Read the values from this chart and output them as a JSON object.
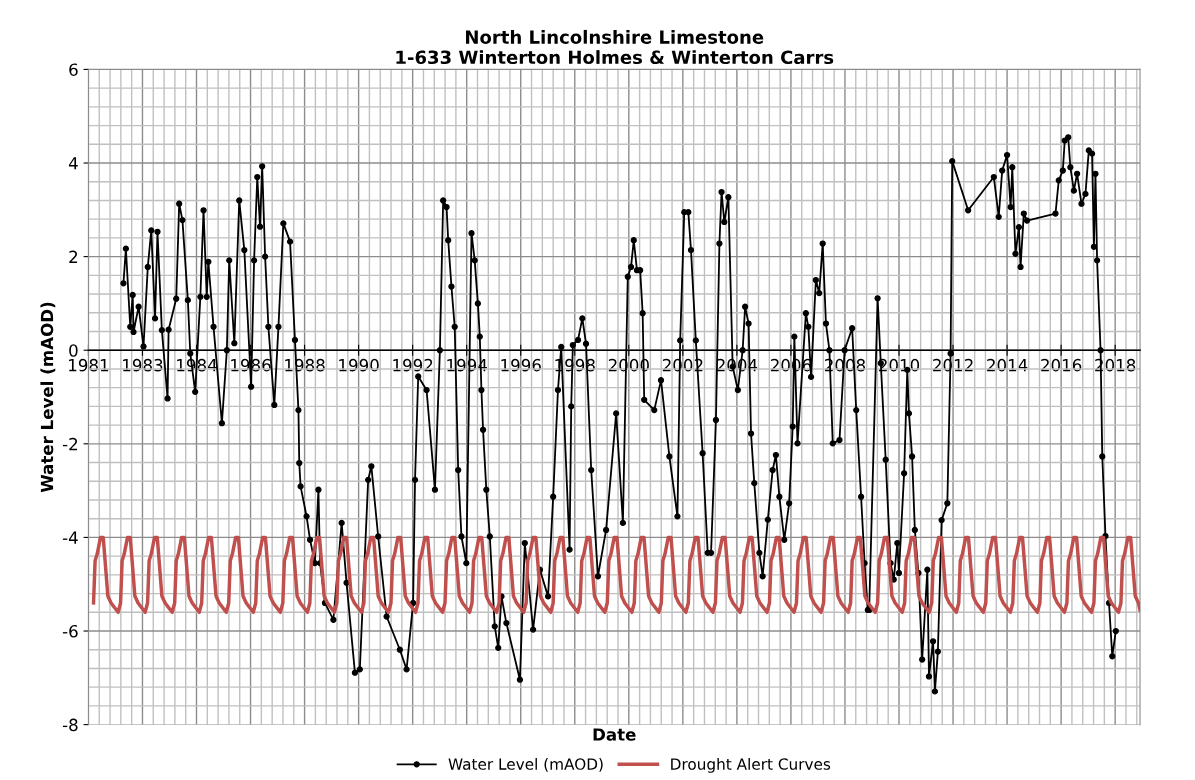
{
  "chart_data": {
    "type": "line",
    "title": "North Lincolnshire Limestone\n1-633 Winterton Holmes & Winterton Carrs",
    "xlabel": "Date",
    "ylabel": "Water Level (mAOD)",
    "xlim": [
      "1981-01-01",
      "2019-11-24"
    ],
    "ylim": [
      -8,
      6
    ],
    "yticks": [
      -8,
      -6,
      -4,
      -2,
      0,
      2,
      4,
      6
    ],
    "xticks": [
      {
        "value": "1981-01-01",
        "label": "1981"
      },
      {
        "value": "1983-01-01",
        "label": "1983"
      },
      {
        "value": "1984-12-31",
        "label": "1984"
      },
      {
        "value": "1986-12-31",
        "label": "1986"
      },
      {
        "value": "1988-12-30",
        "label": "1988"
      },
      {
        "value": "1990-12-30",
        "label": "1990"
      },
      {
        "value": "1992-12-29",
        "label": "1992"
      },
      {
        "value": "1994-12-29",
        "label": "1994"
      },
      {
        "value": "1996-12-28",
        "label": "1996"
      },
      {
        "value": "1998-12-28",
        "label": "1998"
      },
      {
        "value": "2000-12-27",
        "label": "2000"
      },
      {
        "value": "2002-12-27",
        "label": "2002"
      },
      {
        "value": "2004-12-26",
        "label": "2004"
      },
      {
        "value": "2006-12-26",
        "label": "2006"
      },
      {
        "value": "2008-12-25",
        "label": "2008"
      },
      {
        "value": "2010-12-25",
        "label": "2010"
      },
      {
        "value": "2012-12-24",
        "label": "2012"
      },
      {
        "value": "2014-12-24",
        "label": "2014"
      },
      {
        "value": "2016-12-23",
        "label": "2016"
      },
      {
        "value": "2018-12-23",
        "label": "2018"
      }
    ],
    "grid": true,
    "legend": "bottom",
    "series": [
      {
        "name": "Water Level (mAOD)",
        "color": "#000000",
        "marker": "circle",
        "x": [
          "1982-04-19",
          "1982-05-22",
          "1982-07-20",
          "1982-08-22",
          "1982-09-02",
          "1982-11-10",
          "1983-01-15",
          "1983-03-14",
          "1983-04-30",
          "1983-06-20",
          "1983-07-23",
          "1983-09-20",
          "1983-12-06",
          "1983-12-20",
          "1984-04-01",
          "1984-05-11",
          "1984-06-24",
          "1984-09-05",
          "1984-10-08",
          "1984-12-13",
          "1985-02-21",
          "1985-04-05",
          "1985-05-18",
          "1985-06-09",
          "1985-08-18",
          "1985-12-09",
          "1986-02-14",
          "1986-03-18",
          "1986-05-26",
          "1986-07-31",
          "1986-10-08",
          "1987-01-08",
          "1987-02-17",
          "1987-04-01",
          "1987-05-08",
          "1987-06-06",
          "1987-07-16",
          "1987-08-29",
          "1987-11-17",
          "1988-01-12",
          "1988-03-18",
          "1988-06-17",
          "1988-08-22",
          "1988-10-08",
          "1988-10-19",
          "1988-11-06",
          "1989-01-26",
          "1989-03-14",
          "1989-05-18",
          "1989-07-05",
          "1989-07-27",
          "1989-10-01",
          "1990-01-23",
          "1990-05-15",
          "1990-07-20",
          "1990-11-10",
          "1991-01-15",
          "1991-05-08",
          "1991-06-20",
          "1991-09-20",
          "1992-01-12",
          "1992-07-09",
          "1992-10-08",
          "1993-01-04",
          "1993-01-30",
          "1993-03-14",
          "1993-07-05",
          "1993-10-26",
          "1994-01-01",
          "1994-02-14",
          "1994-04-01",
          "1994-04-23",
          "1994-06-06",
          "1994-07-20",
          "1994-09-05",
          "1994-10-19",
          "1994-12-24",
          "1995-03-04",
          "1995-04-16",
          "1995-05-29",
          "1995-06-24",
          "1995-07-16",
          "1995-08-07",
          "1995-09-20",
          "1995-11-06",
          "1996-01-12",
          "1996-02-28",
          "1996-04-12",
          "1996-06-17",
          "1996-12-17",
          "1997-02-21",
          "1997-06-13",
          "1997-09-13",
          "1998-01-01",
          "1998-03-11",
          "1998-05-15",
          "1998-06-28",
          "1998-10-19",
          "1998-11-10",
          "1998-12-02",
          "1999-02-10",
          "1999-04-09",
          "1999-05-29",
          "1999-08-07",
          "1999-11-06",
          "2000-02-24",
          "2000-07-09",
          "2000-10-08",
          "2000-12-13",
          "2001-01-26",
          "2001-03-04",
          "2001-04-16",
          "2001-05-29",
          "2001-07-02",
          "2001-07-23",
          "2001-12-06",
          "2002-03-07",
          "2002-06-28",
          "2002-10-15",
          "2002-11-21",
          "2003-01-15",
          "2003-03-11",
          "2003-04-16",
          "2003-06-20",
          "2003-09-20",
          "2003-11-28",
          "2004-01-12",
          "2004-03-18",
          "2004-05-04",
          "2004-06-02",
          "2004-07-09",
          "2004-09-02",
          "2004-10-30",
          "2005-01-08",
          "2005-03-14",
          "2005-04-16",
          "2005-06-02",
          "2005-07-05",
          "2005-08-18",
          "2005-10-26",
          "2005-12-09",
          "2006-02-17",
          "2006-04-23",
          "2006-06-06",
          "2006-07-23",
          "2006-09-27",
          "2006-12-02",
          "2007-01-19",
          "2007-02-10",
          "2007-03-25",
          "2007-07-16",
          "2007-08-18",
          "2007-09-24",
          "2007-11-28",
          "2008-01-12",
          "2008-02-28",
          "2008-04-12",
          "2008-05-29",
          "2008-07-13",
          "2008-10-12",
          "2008-12-20",
          "2009-04-01",
          "2009-05-26",
          "2009-07-31",
          "2009-09-16",
          "2009-10-30",
          "2009-11-17",
          "2010-03-11",
          "2010-04-23",
          "2010-06-28",
          "2010-09-02",
          "2010-10-15",
          "2010-12-02",
          "2010-12-24",
          "2011-03-04",
          "2011-04-16",
          "2011-05-08",
          "2011-06-20",
          "2011-07-27",
          "2011-09-13",
          "2011-11-03",
          "2012-01-12",
          "2012-02-03",
          "2012-03-29",
          "2012-04-23",
          "2012-06-02",
          "2012-07-23",
          "2012-10-08",
          "2012-11-21",
          "2012-12-13",
          "2013-07-16",
          "2014-06-28",
          "2014-09-02",
          "2014-10-19",
          "2014-12-24",
          "2015-02-10",
          "2015-03-04",
          "2015-04-16",
          "2015-06-02",
          "2015-06-24",
          "2015-08-07",
          "2015-09-20",
          "2016-10-08",
          "2016-11-21",
          "2017-01-15",
          "2017-02-10",
          "2017-03-29",
          "2017-04-27",
          "2017-06-13",
          "2017-07-27",
          "2017-09-24",
          "2017-11-17",
          "2018-01-01",
          "2018-02-14",
          "2018-03-11",
          "2018-04-01",
          "2018-04-23",
          "2018-06-09",
          "2018-07-02",
          "2018-08-14",
          "2018-10-01",
          "2018-11-14",
          "2019-01-01"
        ],
        "values": [
          1.43,
          2.17,
          0.5,
          1.18,
          0.39,
          0.93,
          0.08,
          1.78,
          2.56,
          0.68,
          2.53,
          0.43,
          -1.03,
          0.44,
          1.1,
          3.13,
          2.78,
          1.07,
          -0.07,
          -0.89,
          1.14,
          2.99,
          1.14,
          1.89,
          0.5,
          -1.56,
          0.0,
          1.92,
          0.15,
          3.2,
          2.14,
          -0.78,
          1.92,
          3.7,
          2.64,
          3.93,
          2.0,
          0.5,
          -1.17,
          0.5,
          2.71,
          2.32,
          0.22,
          -1.28,
          -2.41,
          -2.91,
          -3.55,
          -4.05,
          -4.55,
          -2.98,
          -4.55,
          -5.4,
          -5.76,
          -3.69,
          -4.97,
          -6.89,
          -6.82,
          -2.77,
          -2.48,
          -3.98,
          -5.69,
          -6.4,
          -6.82,
          -5.4,
          -2.77,
          -0.56,
          -0.85,
          -2.98,
          0.0,
          3.2,
          3.06,
          2.35,
          1.36,
          0.5,
          -2.56,
          -3.98,
          -4.55,
          2.5,
          1.92,
          1.0,
          0.29,
          -0.85,
          -1.7,
          -2.98,
          -3.98,
          -5.9,
          -6.36,
          -5.26,
          -5.83,
          -7.04,
          -4.12,
          -5.97,
          -4.69,
          -5.26,
          -3.13,
          -0.85,
          0.07,
          -4.26,
          -1.2,
          0.11,
          0.22,
          0.68,
          0.14,
          -2.56,
          -4.83,
          -3.84,
          -1.35,
          -3.69,
          1.57,
          1.78,
          2.35,
          1.71,
          1.71,
          0.79,
          -1.06,
          -1.28,
          -0.64,
          -2.27,
          -3.55,
          0.21,
          2.95,
          2.95,
          2.14,
          0.21,
          -2.2,
          -4.33,
          -4.33,
          -1.49,
          2.28,
          3.38,
          2.74,
          3.27,
          -0.35,
          -0.85,
          0.0,
          0.93,
          0.57,
          -1.78,
          -2.84,
          -4.33,
          -4.83,
          -3.62,
          -2.56,
          -2.24,
          -3.13,
          -4.05,
          -3.27,
          -1.63,
          0.29,
          -1.99,
          0.79,
          0.5,
          -0.57,
          1.5,
          1.22,
          2.28,
          0.57,
          0.0,
          -1.99,
          -1.92,
          0.0,
          0.47,
          -1.28,
          -3.13,
          -4.55,
          -5.55,
          -5.55,
          1.11,
          -0.28,
          -2.34,
          -4.55,
          -4.9,
          -4.12,
          -4.76,
          -2.63,
          -0.42,
          -1.35,
          -2.27,
          -3.84,
          -4.76,
          -6.61,
          -4.69,
          -6.97,
          -6.22,
          -7.29,
          -6.44,
          -3.63,
          -3.27,
          -0.07,
          4.04,
          2.99,
          3.7,
          2.85,
          3.84,
          4.17,
          3.06,
          3.91,
          2.06,
          2.63,
          1.78,
          2.92,
          2.77,
          2.92,
          3.63,
          3.84,
          4.48,
          4.55,
          3.91,
          3.41,
          3.77,
          3.13,
          3.34,
          4.27,
          4.2,
          2.21,
          3.77,
          1.92,
          0.0,
          -2.27,
          -3.97,
          -5.4,
          -6.54,
          -6.0
        ]
      },
      {
        "name": "Drought Alert Curves",
        "color": "#c0504d",
        "marker": "none",
        "x": [
          "1981-03-11",
          "1981-04-01",
          "1981-04-30",
          "1981-06-13",
          "1981-07-20",
          "1981-08-29",
          "1981-09-20",
          "1981-11-03",
          "1982-02-06",
          "1982-03-11",
          "1982-04-01",
          "1982-04-30",
          "1982-06-13",
          "1982-07-20",
          "1982-08-29",
          "1982-09-20",
          "1982-11-03",
          "1983-02-06",
          "1983-03-11",
          "1983-04-01",
          "1983-04-30",
          "1983-06-13",
          "1983-07-20",
          "1983-08-29",
          "1983-09-20",
          "1983-11-03",
          "1984-02-06",
          "1984-03-11",
          "1984-04-01",
          "1984-04-30",
          "1984-06-13",
          "1984-07-20",
          "1984-08-29",
          "1984-09-20",
          "1984-11-03",
          "1985-02-06",
          "1985-03-11",
          "1985-04-01",
          "1985-04-30",
          "1985-06-13",
          "1985-07-20",
          "1985-08-29",
          "1985-09-20",
          "1985-11-03",
          "1986-02-06",
          "1986-03-11",
          "1986-04-01",
          "1986-04-30",
          "1986-06-13",
          "1986-07-20",
          "1986-08-29",
          "1986-09-20",
          "1986-11-03",
          "1987-02-06",
          "1987-03-11",
          "1987-04-01",
          "1987-04-30",
          "1987-06-13",
          "1987-07-20",
          "1987-08-29",
          "1987-09-20",
          "1987-11-03",
          "1988-02-06",
          "1988-03-11",
          "1988-04-01",
          "1988-04-30",
          "1988-06-13",
          "1988-07-20",
          "1988-08-29",
          "1988-09-20",
          "1988-11-03",
          "1989-02-06",
          "1989-03-11",
          "1989-04-01",
          "1989-04-30",
          "1989-06-13",
          "1989-07-20",
          "1989-08-29",
          "1989-09-20",
          "1989-11-03",
          "1990-02-06",
          "1990-03-11",
          "1990-04-01",
          "1990-04-30",
          "1990-06-13",
          "1990-07-20",
          "1990-08-29",
          "1990-09-20",
          "1990-11-03",
          "1991-02-06",
          "1991-03-11",
          "1991-04-01",
          "1991-04-30",
          "1991-06-13",
          "1991-07-20",
          "1991-08-29",
          "1991-09-20",
          "1991-11-03",
          "1992-02-06",
          "1992-03-11",
          "1992-04-01",
          "1992-04-30",
          "1992-06-13",
          "1992-07-20",
          "1992-08-29",
          "1992-09-20",
          "1992-11-03",
          "1993-02-06",
          "1993-03-11",
          "1993-04-01",
          "1993-04-30",
          "1993-06-13",
          "1993-07-20",
          "1993-08-29",
          "1993-09-20",
          "1993-11-03",
          "1994-02-06",
          "1994-03-11",
          "1994-04-01",
          "1994-04-30",
          "1994-06-13",
          "1994-07-20",
          "1994-08-29",
          "1994-09-20",
          "1994-11-03",
          "1995-02-06",
          "1995-03-11",
          "1995-04-01",
          "1995-04-30",
          "1995-06-13",
          "1995-07-20",
          "1995-08-29",
          "1995-09-20",
          "1995-11-03",
          "1996-02-06",
          "1996-03-11",
          "1996-04-01",
          "1996-04-30",
          "1996-06-13",
          "1996-07-20",
          "1996-08-29",
          "1996-09-20",
          "1996-11-03",
          "1997-02-06",
          "1997-03-11",
          "1997-04-01",
          "1997-04-30",
          "1997-06-13",
          "1997-07-20",
          "1997-08-29",
          "1997-09-20",
          "1997-11-03",
          "1998-02-06",
          "1998-03-11",
          "1998-04-01",
          "1998-04-30",
          "1998-06-13",
          "1998-07-20",
          "1998-08-29",
          "1998-09-20",
          "1998-11-03",
          "1999-02-06",
          "1999-03-11",
          "1999-04-01",
          "1999-04-30",
          "1999-06-13",
          "1999-07-20",
          "1999-08-29",
          "1999-09-20",
          "1999-11-03",
          "2000-02-06",
          "2000-03-11",
          "2000-04-01",
          "2000-04-30",
          "2000-06-13",
          "2000-07-20",
          "2000-08-29",
          "2000-09-20",
          "2000-11-03",
          "2001-02-06",
          "2001-03-11",
          "2001-04-01",
          "2001-04-30",
          "2001-06-13",
          "2001-07-20",
          "2001-08-29",
          "2001-09-20",
          "2001-11-03",
          "2002-02-06",
          "2002-03-11",
          "2002-04-01",
          "2002-04-30",
          "2002-06-13",
          "2002-07-20",
          "2002-08-29",
          "2002-09-20",
          "2002-11-03",
          "2003-02-06",
          "2003-03-11",
          "2003-04-01",
          "2003-04-30",
          "2003-06-13",
          "2003-07-20",
          "2003-08-29",
          "2003-09-20",
          "2003-11-03",
          "2004-02-06",
          "2004-03-11",
          "2004-04-01",
          "2004-04-30",
          "2004-06-13",
          "2004-07-20",
          "2004-08-29",
          "2004-09-20",
          "2004-11-03",
          "2005-02-06",
          "2005-03-11",
          "2005-04-01",
          "2005-04-30",
          "2005-06-13",
          "2005-07-20",
          "2005-08-29",
          "2005-09-20",
          "2005-11-03",
          "2006-02-06",
          "2006-03-11",
          "2006-04-01",
          "2006-04-30",
          "2006-06-13",
          "2006-07-20",
          "2006-08-29",
          "2006-09-20",
          "2006-11-03",
          "2007-02-06",
          "2007-03-11",
          "2007-04-01",
          "2007-04-30",
          "2007-06-13",
          "2007-07-20",
          "2007-08-29",
          "2007-09-20",
          "2007-11-03",
          "2008-02-06",
          "2008-03-11",
          "2008-04-01",
          "2008-04-30",
          "2008-06-13",
          "2008-07-20",
          "2008-08-29",
          "2008-09-20",
          "2008-11-03",
          "2009-02-06",
          "2009-03-11",
          "2009-04-01",
          "2009-04-30",
          "2009-06-13",
          "2009-07-20",
          "2009-08-29",
          "2009-09-20",
          "2009-11-03",
          "2010-02-06",
          "2010-03-11",
          "2010-04-01",
          "2010-04-30",
          "2010-06-13",
          "2010-07-20",
          "2010-08-29",
          "2010-09-20",
          "2010-11-03",
          "2011-02-06",
          "2011-03-11",
          "2011-04-01",
          "2011-04-30",
          "2011-06-13",
          "2011-07-20",
          "2011-08-29",
          "2011-09-20",
          "2011-11-03",
          "2012-02-06",
          "2012-03-11",
          "2012-04-01",
          "2012-04-30",
          "2012-06-13",
          "2012-07-20",
          "2012-08-29",
          "2012-09-20",
          "2012-11-03",
          "2013-02-06",
          "2013-03-11",
          "2013-04-01",
          "2013-04-30",
          "2013-06-13",
          "2013-07-20",
          "2013-08-29",
          "2013-09-20",
          "2013-11-03",
          "2014-02-06",
          "2014-03-11",
          "2014-04-01",
          "2014-04-30",
          "2014-06-13",
          "2014-07-20",
          "2014-08-29",
          "2014-09-20",
          "2014-11-03",
          "2015-02-06",
          "2015-03-11",
          "2015-04-01",
          "2015-04-30",
          "2015-06-13",
          "2015-07-20",
          "2015-08-29",
          "2015-09-20",
          "2015-11-03",
          "2016-02-06",
          "2016-03-11",
          "2016-04-01",
          "2016-04-30",
          "2016-06-13",
          "2016-07-20",
          "2016-08-29",
          "2016-09-20",
          "2016-11-03",
          "2017-02-06",
          "2017-03-11",
          "2017-04-01",
          "2017-04-30",
          "2017-06-13",
          "2017-07-20",
          "2017-08-29",
          "2017-09-20",
          "2017-11-03",
          "2018-02-06",
          "2018-03-11",
          "2018-04-01",
          "2018-04-30",
          "2018-06-13",
          "2018-07-20",
          "2018-08-29",
          "2018-09-20",
          "2018-11-03",
          "2019-02-06",
          "2019-03-11",
          "2019-04-01",
          "2019-04-30",
          "2019-06-13",
          "2019-07-20",
          "2019-08-29",
          "2019-09-20",
          "2019-11-03",
          "2019-11-24"
        ],
        "values": [
          -5.4,
          -4.5,
          -4.35,
          -4.0,
          -4.0,
          -4.8,
          -5.25,
          -5.4,
          -5.6,
          -5.4,
          -4.5,
          -4.35,
          -4.0,
          -4.0,
          -4.8,
          -5.25,
          -5.4,
          -5.6,
          -5.4,
          -4.5,
          -4.35,
          -4.0,
          -4.0,
          -4.8,
          -5.25,
          -5.4,
          -5.6,
          -5.4,
          -4.5,
          -4.35,
          -4.0,
          -4.0,
          -4.8,
          -5.25,
          -5.4,
          -5.6,
          -5.4,
          -4.5,
          -4.35,
          -4.0,
          -4.0,
          -4.8,
          -5.25,
          -5.4,
          -5.6,
          -5.4,
          -4.5,
          -4.35,
          -4.0,
          -4.0,
          -4.8,
          -5.25,
          -5.4,
          -5.6,
          -5.4,
          -4.5,
          -4.35,
          -4.0,
          -4.0,
          -4.8,
          -5.25,
          -5.4,
          -5.6,
          -5.4,
          -4.5,
          -4.35,
          -4.0,
          -4.0,
          -4.8,
          -5.25,
          -5.4,
          -5.6,
          -5.4,
          -4.5,
          -4.35,
          -4.0,
          -4.0,
          -4.8,
          -5.25,
          -5.4,
          -5.6,
          -5.4,
          -4.5,
          -4.35,
          -4.0,
          -4.0,
          -4.8,
          -5.25,
          -5.4,
          -5.6,
          -5.4,
          -4.5,
          -4.35,
          -4.0,
          -4.0,
          -4.8,
          -5.25,
          -5.4,
          -5.6,
          -5.4,
          -4.5,
          -4.35,
          -4.0,
          -4.0,
          -4.8,
          -5.25,
          -5.4,
          -5.6,
          -5.4,
          -4.5,
          -4.35,
          -4.0,
          -4.0,
          -4.8,
          -5.25,
          -5.4,
          -5.6,
          -5.4,
          -4.5,
          -4.35,
          -4.0,
          -4.0,
          -4.8,
          -5.25,
          -5.4,
          -5.6,
          -5.4,
          -4.5,
          -4.35,
          -4.0,
          -4.0,
          -4.8,
          -5.25,
          -5.4,
          -5.6,
          -5.4,
          -4.5,
          -4.35,
          -4.0,
          -4.0,
          -4.8,
          -5.25,
          -5.4,
          -5.6,
          -5.4,
          -4.5,
          -4.35,
          -4.0,
          -4.0,
          -4.8,
          -5.25,
          -5.4,
          -5.6,
          -5.4,
          -4.5,
          -4.35,
          -4.0,
          -4.0,
          -4.8,
          -5.25,
          -5.4,
          -5.6,
          -5.4,
          -4.5,
          -4.35,
          -4.0,
          -4.0,
          -4.8,
          -5.25,
          -5.4,
          -5.6,
          -5.4,
          -4.5,
          -4.35,
          -4.0,
          -4.0,
          -4.8,
          -5.25,
          -5.4,
          -5.6,
          -5.4,
          -4.5,
          -4.35,
          -4.0,
          -4.0,
          -4.8,
          -5.25,
          -5.4,
          -5.6,
          -5.4,
          -4.5,
          -4.35,
          -4.0,
          -4.0,
          -4.8,
          -5.25,
          -5.4,
          -5.6,
          -5.4,
          -4.5,
          -4.35,
          -4.0,
          -4.0,
          -4.8,
          -5.25,
          -5.4,
          -5.6,
          -5.4,
          -4.5,
          -4.35,
          -4.0,
          -4.0,
          -4.8,
          -5.25,
          -5.4,
          -5.6,
          -5.4,
          -4.5,
          -4.35,
          -4.0,
          -4.0,
          -4.8,
          -5.25,
          -5.4,
          -5.6,
          -5.4,
          -4.5,
          -4.35,
          -4.0,
          -4.0,
          -4.8,
          -5.25,
          -5.4,
          -5.6,
          -5.4,
          -4.5,
          -4.35,
          -4.0,
          -4.0,
          -4.8,
          -5.25,
          -5.4,
          -5.6,
          -5.4,
          -4.5,
          -4.35,
          -4.0,
          -4.0,
          -4.8,
          -5.25,
          -5.4,
          -5.6,
          -5.4,
          -4.5,
          -4.35,
          -4.0,
          -4.0,
          -4.8,
          -5.25,
          -5.4,
          -5.6,
          -5.4,
          -4.5,
          -4.35,
          -4.0,
          -4.0,
          -4.8,
          -5.25,
          -5.4,
          -5.6,
          -5.4,
          -4.5,
          -4.35,
          -4.0,
          -4.0,
          -4.8,
          -5.25,
          -5.4,
          -5.6,
          -5.4,
          -4.5,
          -4.35,
          -4.0,
          -4.0,
          -4.8,
          -5.25,
          -5.4,
          -5.6,
          -5.4,
          -4.5,
          -4.35,
          -4.0,
          -4.0,
          -4.8,
          -5.25,
          -5.4,
          -5.6,
          -5.4,
          -4.5,
          -4.35,
          -4.0,
          -4.0,
          -4.8,
          -5.25,
          -5.4,
          -5.6,
          -5.4,
          -4.5,
          -4.35,
          -4.0,
          -4.0,
          -4.8,
          -5.25,
          -5.4,
          -5.6,
          -5.4,
          -4.5,
          -4.35,
          -4.0,
          -4.0,
          -4.8,
          -5.25,
          -5.4,
          -5.6,
          -5.4,
          -4.5,
          -4.35,
          -4.0,
          -4.0,
          -4.8,
          -5.25,
          -5.4,
          -5.6,
          -5.4,
          -4.5,
          -4.35,
          -4.0,
          -4.0,
          -4.8,
          -5.25,
          -5.4,
          -5.6,
          -5.4,
          -4.5,
          -4.35,
          -4.0,
          -4.0,
          -4.8,
          -5.25,
          -5.4,
          -5.55
        ]
      }
    ]
  }
}
